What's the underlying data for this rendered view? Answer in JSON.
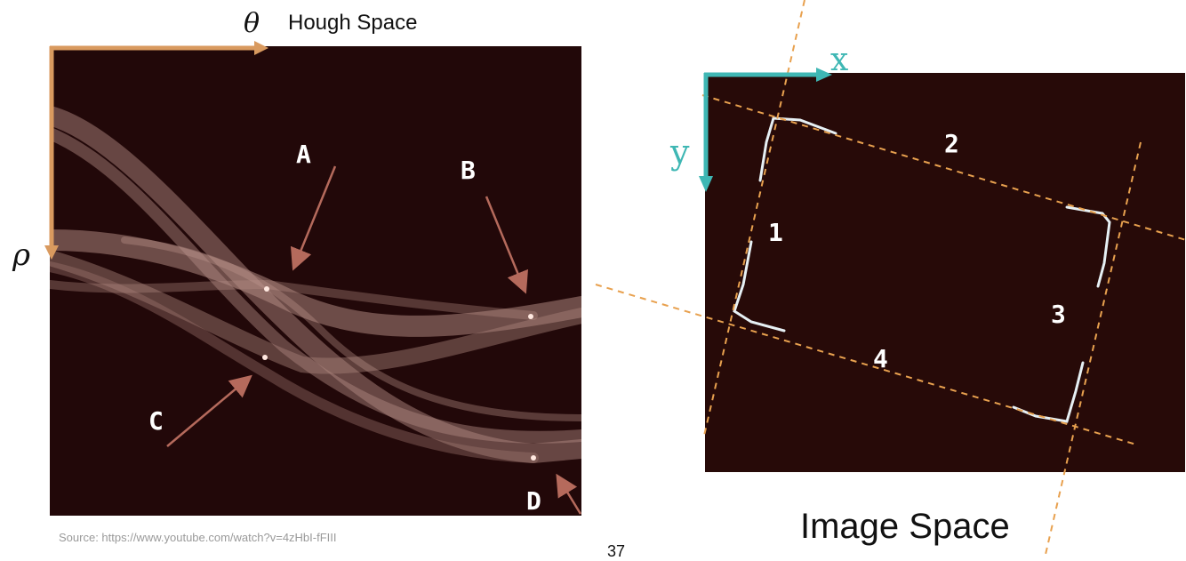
{
  "hough": {
    "title": "Hough Space",
    "theta_symbol": "θ",
    "rho_symbol": "ρ",
    "labels": {
      "a": "A",
      "b": "B",
      "c": "C",
      "d": "D"
    }
  },
  "image_space": {
    "title": "Image Space",
    "x_axis": "x",
    "y_axis": "y",
    "lines": {
      "l1": "1",
      "l2": "2",
      "l3": "3",
      "l4": "4"
    }
  },
  "source_text": "Source: https://www.youtube.com/watch?v=4zHbI-fFIII",
  "page_number": "37",
  "colors": {
    "axis_orange": "#d99a5f",
    "teal": "#3fb7b4",
    "arrow": "#b56a5c",
    "dash": "#e8a14f",
    "panel_dark": "#220809",
    "curve": "#c79a90"
  }
}
